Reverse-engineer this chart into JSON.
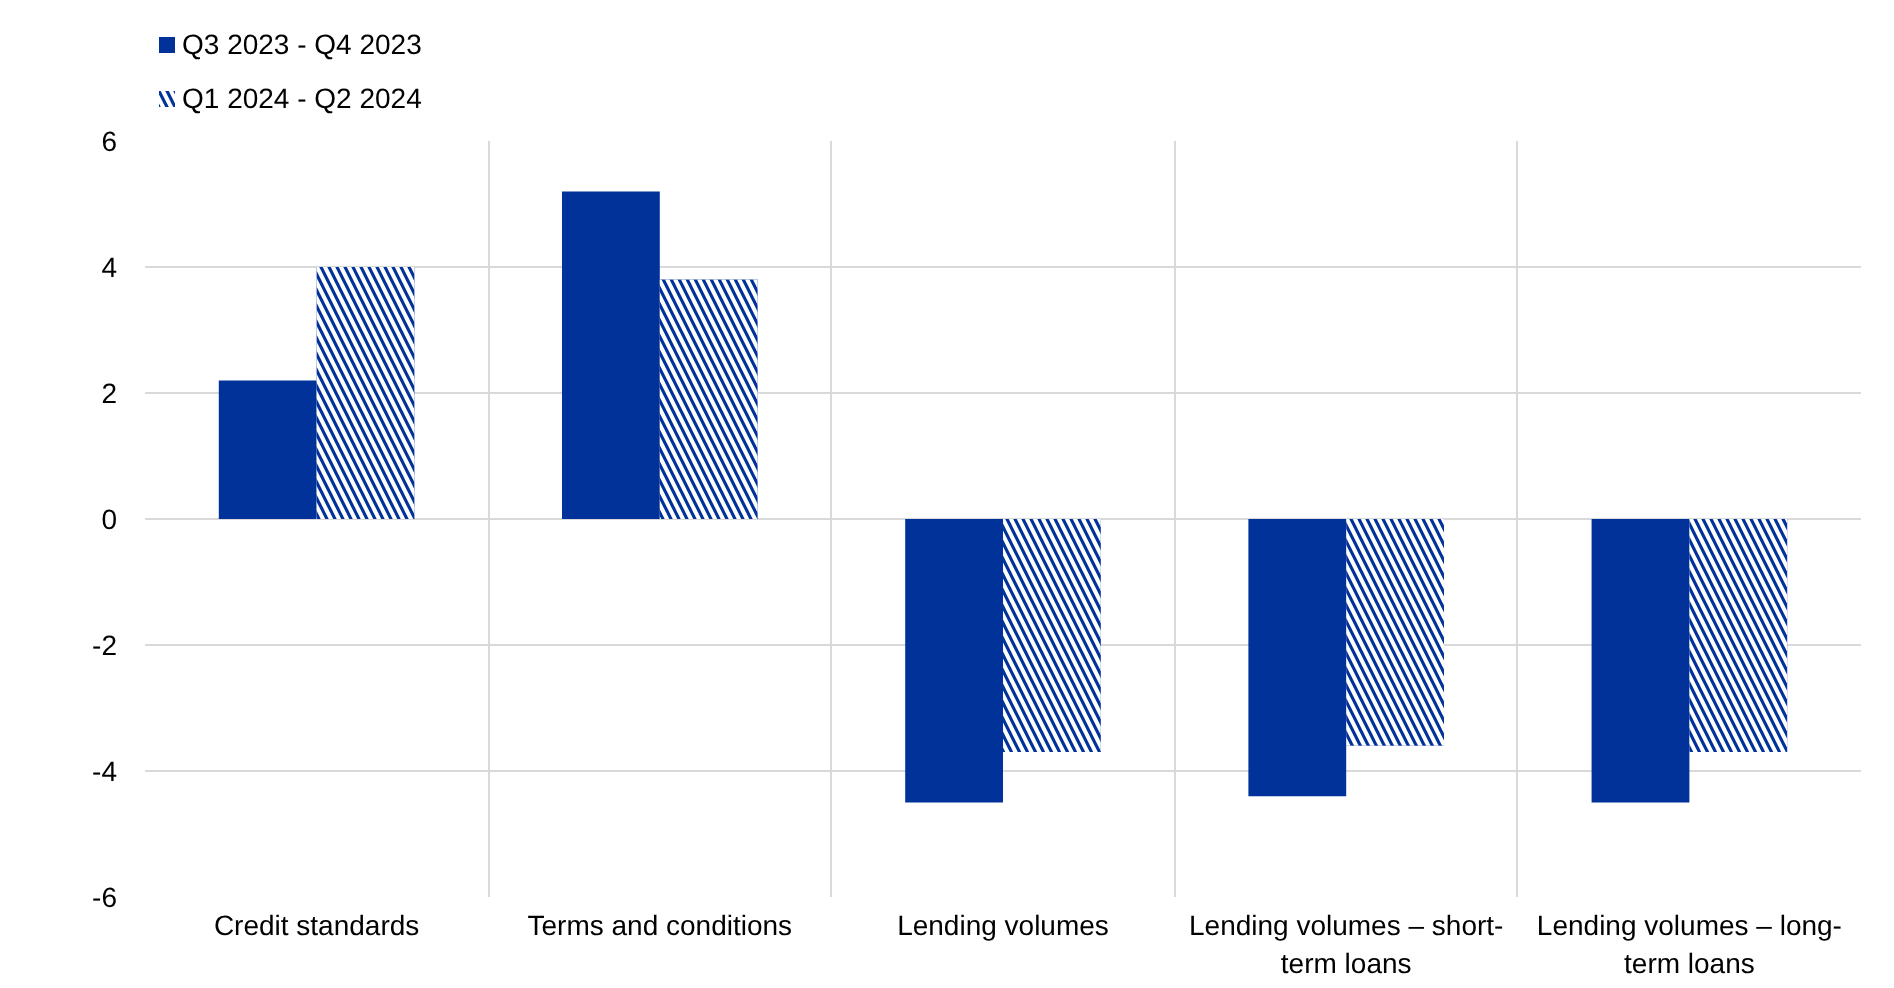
{
  "chart_data": {
    "type": "bar",
    "categories": [
      "Credit standards",
      "Terms and conditions",
      "Lending volumes",
      "Lending volumes – short-term loans",
      "Lending volumes – long-term loans"
    ],
    "series": [
      {
        "name": "Q3 2023 - Q4 2023",
        "color": "#003299",
        "values": [
          2.2,
          5.2,
          -4.5,
          -4.4,
          -4.5
        ]
      },
      {
        "name": "Q1 2024 - Q2 2024",
        "color": "#003299",
        "values": [
          4.0,
          3.8,
          -3.7,
          -3.6,
          -3.7
        ]
      }
    ],
    "ylim": [
      -6,
      6
    ],
    "yticks": [
      -6,
      -4,
      -2,
      0,
      2,
      4,
      6
    ],
    "grid": true,
    "legend": "top left"
  }
}
